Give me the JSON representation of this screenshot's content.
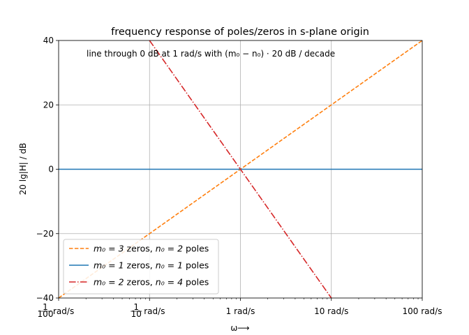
{
  "chart_data": {
    "type": "line",
    "title": "frequency response of poles/zeros in s-plane origin",
    "annotation": "line through 0 dB at 1 rad/s with (m₀ − n₀) ·  20 dB / decade",
    "xlabel": "ω⟶",
    "ylabel": "20 lg|H| / dB",
    "xscale": "log",
    "xlim": [
      0.01,
      100
    ],
    "ylim": [
      -40,
      40
    ],
    "grid": true,
    "legend_position": "lower-left",
    "x_ticks": [
      {
        "value": 0.01,
        "label": "rad/s",
        "num": "1",
        "den": "100"
      },
      {
        "value": 0.1,
        "label": "rad/s",
        "num": "1",
        "den": "10"
      },
      {
        "value": 1,
        "label": "1 rad/s"
      },
      {
        "value": 10,
        "label": "10 rad/s"
      },
      {
        "value": 100,
        "label": "100 rad/s"
      }
    ],
    "y_ticks": [
      {
        "value": -40,
        "label": "−40"
      },
      {
        "value": -20,
        "label": "−20"
      },
      {
        "value": 0,
        "label": "0"
      },
      {
        "value": 20,
        "label": "20"
      },
      {
        "value": 40,
        "label": "40"
      }
    ],
    "series": [
      {
        "name": "m₀ = 3 zeros, n₀ = 2 poles",
        "m": "m₀ = 3",
        "zeros": " zeros, ",
        "n": "n₀ = 2",
        "poles": " poles",
        "color": "#ff7f0e",
        "dash": "dashed",
        "x": [
          0.01,
          100
        ],
        "y": [
          -40,
          40
        ]
      },
      {
        "name": "m₀ = 1 zeros, n₀ = 1 poles",
        "m": "m₀ = 1",
        "zeros": " zeros, ",
        "n": "n₀ = 1",
        "poles": " poles",
        "color": "#1f77b4",
        "dash": "solid",
        "x": [
          0.01,
          100
        ],
        "y": [
          0,
          0
        ]
      },
      {
        "name": "m₀ = 2 zeros, n₀ = 4 poles",
        "m": "m₀ = 2",
        "zeros": " zeros, ",
        "n": "n₀ = 4",
        "poles": " poles",
        "color": "#d62728",
        "dash": "dashdot",
        "x": [
          0.1,
          10
        ],
        "y": [
          40,
          -40
        ]
      }
    ]
  }
}
